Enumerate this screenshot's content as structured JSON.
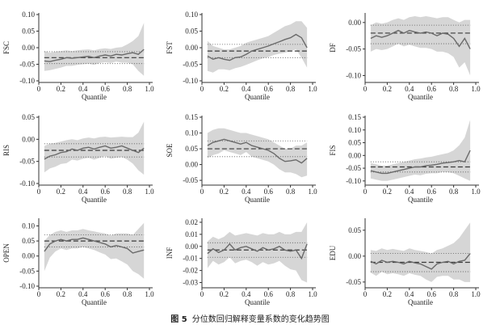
{
  "caption": {
    "fig_label": "图 5",
    "text": "分位数回归解释变量系数的变化趋势图"
  },
  "colors": {
    "band": "#d6d6d6",
    "line": "#6a6a6a",
    "ols": "#3a3a3a",
    "dotted": "#555555",
    "axis": "#333333"
  },
  "chart_data": [
    {
      "type": "line",
      "title": "",
      "ylabel": "FSC",
      "xlabel": "Quantile",
      "xlim": [
        0,
        1
      ],
      "ylim": [
        -0.1,
        0.1
      ],
      "yticks": [
        "0.10",
        "0.05",
        "0.00",
        "-0.05",
        "-0.10"
      ],
      "ytick_values": [
        0.1,
        0.05,
        0,
        -0.05,
        -0.1
      ],
      "xticks": [
        "0",
        "0.2",
        "0.4",
        "0.6",
        "0.8",
        "1.0"
      ],
      "xtick_values": [
        0,
        0.2,
        0.4,
        0.6,
        0.8,
        1.0
      ],
      "x": [
        0.05,
        0.1,
        0.15,
        0.2,
        0.25,
        0.3,
        0.35,
        0.4,
        0.45,
        0.5,
        0.55,
        0.6,
        0.65,
        0.7,
        0.75,
        0.8,
        0.85,
        0.9,
        0.95
      ],
      "estimate": [
        -0.04,
        -0.042,
        -0.038,
        -0.035,
        -0.03,
        -0.032,
        -0.03,
        -0.028,
        -0.026,
        -0.03,
        -0.025,
        -0.022,
        -0.025,
        -0.02,
        -0.022,
        -0.018,
        -0.015,
        -0.02,
        -0.005
      ],
      "ci_upper": [
        -0.01,
        -0.015,
        -0.012,
        -0.01,
        -0.008,
        -0.01,
        -0.008,
        -0.006,
        -0.005,
        -0.008,
        -0.004,
        -0.002,
        -0.004,
        0.0,
        0.002,
        0.01,
        0.02,
        0.035,
        0.075
      ],
      "ci_lower": [
        -0.07,
        -0.068,
        -0.064,
        -0.06,
        -0.055,
        -0.055,
        -0.052,
        -0.05,
        -0.048,
        -0.052,
        -0.046,
        -0.044,
        -0.046,
        -0.042,
        -0.045,
        -0.045,
        -0.05,
        -0.07,
        -0.085
      ],
      "ols": -0.03,
      "ols_upper": -0.012,
      "ols_lower": -0.048
    },
    {
      "type": "line",
      "title": "",
      "ylabel": "FST",
      "xlabel": "Quantile",
      "xlim": [
        0,
        1
      ],
      "ylim": [
        -0.1,
        0.1
      ],
      "yticks": [
        "0.10",
        "0.05",
        "0.00",
        "-0.05",
        "-0.10"
      ],
      "ytick_values": [
        0.1,
        0.05,
        0,
        -0.05,
        -0.1
      ],
      "xticks": [
        "0",
        "0.2",
        "0.4",
        "0.6",
        "0.8",
        "1.0"
      ],
      "xtick_values": [
        0,
        0.2,
        0.4,
        0.6,
        0.8,
        1.0
      ],
      "x": [
        0.05,
        0.1,
        0.15,
        0.2,
        0.25,
        0.3,
        0.35,
        0.4,
        0.45,
        0.5,
        0.55,
        0.6,
        0.65,
        0.7,
        0.75,
        0.8,
        0.85,
        0.9,
        0.95
      ],
      "estimate": [
        -0.025,
        -0.035,
        -0.03,
        -0.035,
        -0.038,
        -0.03,
        -0.028,
        -0.02,
        -0.01,
        -0.005,
        0.0,
        0.005,
        0.012,
        0.018,
        0.025,
        0.03,
        0.04,
        0.03,
        0.0
      ],
      "ci_upper": [
        0.02,
        0.005,
        0.0,
        -0.005,
        -0.005,
        0.0,
        0.005,
        0.015,
        0.02,
        0.025,
        0.03,
        0.035,
        0.045,
        0.055,
        0.065,
        0.07,
        0.08,
        0.08,
        0.06
      ],
      "ci_lower": [
        -0.07,
        -0.075,
        -0.065,
        -0.065,
        -0.068,
        -0.062,
        -0.058,
        -0.052,
        -0.045,
        -0.038,
        -0.032,
        -0.028,
        -0.022,
        -0.018,
        -0.015,
        -0.01,
        -0.005,
        -0.03,
        -0.06
      ],
      "ols": -0.01,
      "ols_upper": 0.01,
      "ols_lower": -0.03
    },
    {
      "type": "line",
      "title": "",
      "ylabel": "DF",
      "xlabel": "Quantile",
      "xlim": [
        0,
        1
      ],
      "ylim": [
        -0.11,
        0.015
      ],
      "yticks": [
        "0.00",
        "-0.05",
        "-0.10"
      ],
      "ytick_values": [
        0,
        -0.05,
        -0.1
      ],
      "xticks": [
        "0",
        "0.2",
        "0.4",
        "0.6",
        "0.8",
        "1.0"
      ],
      "xtick_values": [
        0,
        0.2,
        0.4,
        0.6,
        0.8,
        1.0
      ],
      "x": [
        0.05,
        0.1,
        0.15,
        0.2,
        0.25,
        0.3,
        0.35,
        0.4,
        0.45,
        0.5,
        0.55,
        0.6,
        0.65,
        0.7,
        0.75,
        0.8,
        0.85,
        0.9,
        0.95
      ],
      "estimate": [
        -0.03,
        -0.025,
        -0.028,
        -0.025,
        -0.02,
        -0.015,
        -0.02,
        -0.015,
        -0.018,
        -0.02,
        -0.018,
        -0.02,
        -0.025,
        -0.02,
        -0.022,
        -0.03,
        -0.045,
        -0.03,
        -0.05
      ],
      "ci_upper": [
        -0.005,
        0.0,
        -0.002,
        0.0,
        0.005,
        0.008,
        0.005,
        0.01,
        0.012,
        0.01,
        0.012,
        0.01,
        0.008,
        0.01,
        0.01,
        0.005,
        0.0,
        0.005,
        0.005
      ],
      "ci_lower": [
        -0.055,
        -0.05,
        -0.052,
        -0.05,
        -0.045,
        -0.04,
        -0.045,
        -0.042,
        -0.045,
        -0.048,
        -0.048,
        -0.05,
        -0.055,
        -0.055,
        -0.058,
        -0.065,
        -0.085,
        -0.075,
        -0.1
      ],
      "ols": -0.02,
      "ols_upper": -0.005,
      "ols_lower": -0.04
    },
    {
      "type": "line",
      "title": "",
      "ylabel": "RIS",
      "xlabel": "Quantile",
      "xlim": [
        0,
        1
      ],
      "ylim": [
        -0.1,
        0.05
      ],
      "yticks": [
        "0.05",
        "0.00",
        "-0.05",
        "-0.10"
      ],
      "ytick_values": [
        0.05,
        0,
        -0.05,
        -0.1
      ],
      "xticks": [
        "0",
        "0.2",
        "0.4",
        "0.6",
        "0.8",
        "1.0"
      ],
      "xtick_values": [
        0,
        0.2,
        0.4,
        0.6,
        0.8,
        1.0
      ],
      "x": [
        0.05,
        0.1,
        0.15,
        0.2,
        0.25,
        0.3,
        0.35,
        0.4,
        0.45,
        0.5,
        0.55,
        0.6,
        0.65,
        0.7,
        0.75,
        0.8,
        0.85,
        0.9,
        0.95
      ],
      "estimate": [
        -0.045,
        -0.038,
        -0.035,
        -0.03,
        -0.028,
        -0.022,
        -0.025,
        -0.02,
        -0.018,
        -0.022,
        -0.018,
        -0.015,
        -0.02,
        -0.018,
        -0.015,
        -0.02,
        -0.025,
        -0.03,
        -0.02
      ],
      "ci_upper": [
        -0.015,
        -0.01,
        -0.008,
        -0.005,
        -0.002,
        0.0,
        -0.002,
        0.002,
        0.004,
        0.002,
        0.005,
        0.006,
        0.004,
        0.005,
        0.006,
        0.005,
        0.005,
        0.015,
        0.04
      ],
      "ci_lower": [
        -0.075,
        -0.066,
        -0.062,
        -0.056,
        -0.054,
        -0.046,
        -0.048,
        -0.044,
        -0.042,
        -0.046,
        -0.042,
        -0.038,
        -0.044,
        -0.042,
        -0.04,
        -0.046,
        -0.055,
        -0.07,
        -0.08
      ],
      "ols": -0.025,
      "ols_upper": -0.01,
      "ols_lower": -0.04
    },
    {
      "type": "line",
      "title": "",
      "ylabel": "SOE",
      "xlabel": "Quantile",
      "xlim": [
        0,
        1
      ],
      "ylim": [
        -0.06,
        0.15
      ],
      "yticks": [
        "0.15",
        "0.10",
        "0.05",
        "0.00",
        "-0.05"
      ],
      "ytick_values": [
        0.15,
        0.1,
        0.05,
        0,
        -0.05
      ],
      "xticks": [
        "0",
        "0.2",
        "0.4",
        "0.6",
        "0.8",
        "1.0"
      ],
      "xtick_values": [
        0,
        0.2,
        0.4,
        0.6,
        0.8,
        1.0
      ],
      "x": [
        0.05,
        0.1,
        0.15,
        0.2,
        0.25,
        0.3,
        0.35,
        0.4,
        0.45,
        0.5,
        0.55,
        0.6,
        0.65,
        0.7,
        0.75,
        0.8,
        0.85,
        0.9,
        0.95
      ],
      "estimate": [
        0.06,
        0.07,
        0.075,
        0.08,
        0.075,
        0.07,
        0.065,
        0.07,
        0.06,
        0.055,
        0.05,
        0.045,
        0.035,
        0.02,
        0.01,
        0.012,
        0.015,
        0.005,
        0.02
      ],
      "ci_upper": [
        0.1,
        0.11,
        0.115,
        0.115,
        0.11,
        0.105,
        0.1,
        0.1,
        0.095,
        0.09,
        0.085,
        0.08,
        0.07,
        0.06,
        0.05,
        0.05,
        0.06,
        0.06,
        0.07
      ],
      "ci_lower": [
        0.02,
        0.03,
        0.035,
        0.045,
        0.04,
        0.035,
        0.03,
        0.04,
        0.025,
        0.02,
        0.015,
        0.01,
        0.0,
        -0.015,
        -0.025,
        -0.025,
        -0.03,
        -0.04,
        -0.035
      ],
      "ols": 0.05,
      "ols_upper": 0.075,
      "ols_lower": 0.025
    },
    {
      "type": "line",
      "title": "",
      "ylabel": "FIS",
      "xlabel": "Quantile",
      "xlim": [
        0,
        1
      ],
      "ylim": [
        -0.11,
        0.15
      ],
      "yticks": [
        "0.15",
        "0.10",
        "0.05",
        "0.00",
        "-0.05",
        "-0.10"
      ],
      "ytick_values": [
        0.15,
        0.1,
        0.05,
        0,
        -0.05,
        -0.1
      ],
      "xticks": [
        "0",
        "0.2",
        "0.4",
        "0.6",
        "0.8",
        "1.0"
      ],
      "xtick_values": [
        0,
        0.2,
        0.4,
        0.6,
        0.8,
        1.0
      ],
      "x": [
        0.05,
        0.1,
        0.15,
        0.2,
        0.25,
        0.3,
        0.35,
        0.4,
        0.45,
        0.5,
        0.55,
        0.6,
        0.65,
        0.7,
        0.75,
        0.8,
        0.85,
        0.9,
        0.95
      ],
      "estimate": [
        -0.06,
        -0.065,
        -0.07,
        -0.07,
        -0.065,
        -0.06,
        -0.055,
        -0.05,
        -0.045,
        -0.045,
        -0.04,
        -0.038,
        -0.035,
        -0.03,
        -0.028,
        -0.025,
        -0.02,
        -0.025,
        0.02
      ],
      "ci_upper": [
        -0.03,
        -0.035,
        -0.04,
        -0.04,
        -0.035,
        -0.03,
        -0.025,
        -0.02,
        -0.015,
        -0.012,
        -0.008,
        -0.005,
        0.0,
        0.005,
        0.01,
        0.02,
        0.04,
        0.07,
        0.14
      ],
      "ci_lower": [
        -0.09,
        -0.095,
        -0.1,
        -0.1,
        -0.095,
        -0.09,
        -0.085,
        -0.08,
        -0.075,
        -0.078,
        -0.072,
        -0.07,
        -0.07,
        -0.065,
        -0.066,
        -0.07,
        -0.08,
        -0.09,
        -0.1
      ],
      "ols": -0.045,
      "ols_upper": -0.025,
      "ols_lower": -0.065
    },
    {
      "type": "line",
      "title": "",
      "ylabel": "OPEN",
      "xlabel": "Quantile",
      "xlim": [
        0,
        1
      ],
      "ylim": [
        -0.1,
        0.12
      ],
      "yticks": [
        "0.10",
        "0.05",
        "0.00",
        "-0.05",
        "-0.10"
      ],
      "ytick_values": [
        0.1,
        0.05,
        0,
        -0.05,
        -0.1
      ],
      "xticks": [
        "0",
        "0.2",
        "0.4",
        "0.6",
        "0.8",
        "1.0"
      ],
      "xtick_values": [
        0,
        0.2,
        0.4,
        0.6,
        0.8,
        1.0
      ],
      "x": [
        0.05,
        0.1,
        0.15,
        0.2,
        0.25,
        0.3,
        0.35,
        0.4,
        0.45,
        0.5,
        0.55,
        0.6,
        0.65,
        0.7,
        0.75,
        0.8,
        0.85,
        0.9,
        0.95
      ],
      "estimate": [
        0.015,
        0.04,
        0.05,
        0.055,
        0.05,
        0.055,
        0.055,
        0.06,
        0.055,
        0.05,
        0.045,
        0.04,
        0.03,
        0.035,
        0.03,
        0.025,
        0.01,
        0.015,
        0.02
      ],
      "ci_upper": [
        0.05,
        0.07,
        0.08,
        0.085,
        0.08,
        0.085,
        0.085,
        0.09,
        0.085,
        0.082,
        0.078,
        0.075,
        0.068,
        0.075,
        0.075,
        0.075,
        0.07,
        0.09,
        0.11
      ],
      "ci_lower": [
        -0.05,
        -0.005,
        0.015,
        0.025,
        0.02,
        0.025,
        0.025,
        0.03,
        0.025,
        0.02,
        0.012,
        0.005,
        -0.01,
        -0.008,
        -0.018,
        -0.028,
        -0.05,
        -0.06,
        -0.075
      ],
      "ols": 0.05,
      "ols_upper": 0.07,
      "ols_lower": 0.03
    },
    {
      "type": "line",
      "title": "",
      "ylabel": "INF",
      "xlabel": "Quantile",
      "xlim": [
        0,
        1
      ],
      "ylim": [
        -0.033,
        0.022
      ],
      "yticks": [
        "0.02",
        "0.01",
        "0.00",
        "-0.01",
        "-0.02",
        "-0.03"
      ],
      "ytick_values": [
        0.02,
        0.01,
        0,
        -0.01,
        -0.02,
        -0.03
      ],
      "xticks": [
        "0",
        "0.2",
        "0.4",
        "0.6",
        "0.8",
        "1.0"
      ],
      "xtick_values": [
        0,
        0.2,
        0.4,
        0.6,
        0.8,
        1.0
      ],
      "x": [
        0.05,
        0.1,
        0.15,
        0.2,
        0.25,
        0.3,
        0.35,
        0.4,
        0.45,
        0.5,
        0.55,
        0.6,
        0.65,
        0.7,
        0.75,
        0.8,
        0.85,
        0.9,
        0.95
      ],
      "estimate": [
        -0.006,
        -0.002,
        -0.005,
        -0.003,
        0.002,
        -0.003,
        -0.001,
        0.0,
        -0.002,
        -0.004,
        -0.001,
        -0.003,
        -0.002,
        0.0,
        -0.003,
        -0.004,
        -0.003,
        -0.01,
        0.002
      ],
      "ci_upper": [
        0.004,
        0.008,
        0.006,
        0.008,
        0.012,
        0.009,
        0.01,
        0.011,
        0.01,
        0.009,
        0.011,
        0.01,
        0.01,
        0.012,
        0.01,
        0.01,
        0.012,
        0.012,
        0.02
      ],
      "ci_lower": [
        -0.018,
        -0.012,
        -0.015,
        -0.013,
        -0.009,
        -0.014,
        -0.012,
        -0.011,
        -0.013,
        -0.016,
        -0.013,
        -0.015,
        -0.014,
        -0.012,
        -0.016,
        -0.019,
        -0.02,
        -0.028,
        -0.03
      ],
      "ols": -0.003,
      "ols_upper": 0.003,
      "ols_lower": -0.009
    },
    {
      "type": "line",
      "title": "",
      "ylabel": "EDU",
      "xlabel": "Quantile",
      "xlim": [
        0,
        1
      ],
      "ylim": [
        -0.058,
        0.07
      ],
      "yticks": [
        "0.05",
        "0.00",
        "-0.05"
      ],
      "ytick_values": [
        0.05,
        0,
        -0.05
      ],
      "xticks": [
        "0",
        "0.2",
        "0.4",
        "0.6",
        "0.8",
        "1.0"
      ],
      "xtick_values": [
        0,
        0.2,
        0.4,
        0.6,
        0.8,
        1.0
      ],
      "x": [
        0.05,
        0.1,
        0.15,
        0.2,
        0.25,
        0.3,
        0.35,
        0.4,
        0.45,
        0.5,
        0.55,
        0.6,
        0.65,
        0.7,
        0.75,
        0.8,
        0.85,
        0.9,
        0.95
      ],
      "estimate": [
        -0.01,
        -0.015,
        -0.008,
        -0.012,
        -0.01,
        -0.012,
        -0.015,
        -0.01,
        -0.013,
        -0.015,
        -0.02,
        -0.025,
        -0.015,
        -0.012,
        -0.01,
        -0.015,
        -0.01,
        -0.008,
        0.005
      ],
      "ci_upper": [
        0.012,
        0.01,
        0.015,
        0.012,
        0.014,
        0.012,
        0.01,
        0.015,
        0.012,
        0.01,
        0.008,
        0.005,
        0.012,
        0.015,
        0.02,
        0.025,
        0.035,
        0.05,
        0.065
      ],
      "ci_lower": [
        -0.032,
        -0.038,
        -0.03,
        -0.035,
        -0.033,
        -0.035,
        -0.038,
        -0.033,
        -0.036,
        -0.038,
        -0.045,
        -0.05,
        -0.04,
        -0.038,
        -0.038,
        -0.045,
        -0.045,
        -0.05,
        -0.05
      ],
      "ols": -0.012,
      "ols_upper": 0.005,
      "ols_lower": -0.03
    }
  ]
}
